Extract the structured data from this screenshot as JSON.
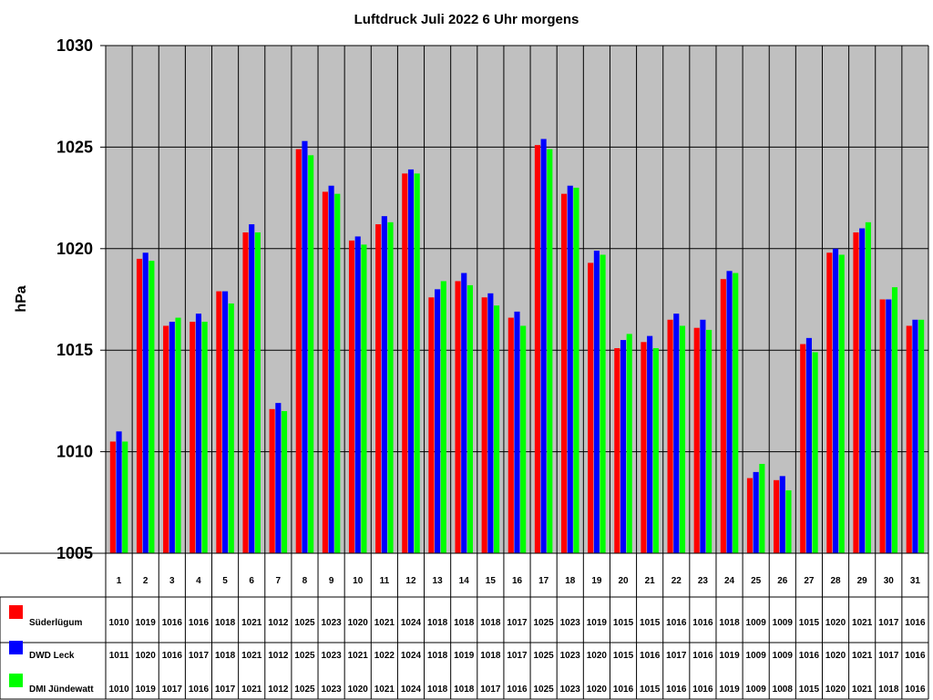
{
  "chart_data": {
    "type": "bar",
    "title": "Luftdruck Juli 2022 6 Uhr morgens",
    "ylabel": "hPa",
    "xlabel": "",
    "ylim": [
      1005,
      1030
    ],
    "yticks": [
      1005,
      1010,
      1015,
      1020,
      1025,
      1030
    ],
    "grid": true,
    "legend_placement": "table-bottom-left",
    "plot_background": "#c0c0c0",
    "categories": [
      "1",
      "2",
      "3",
      "4",
      "5",
      "6",
      "7",
      "8",
      "9",
      "10",
      "11",
      "12",
      "13",
      "14",
      "15",
      "16",
      "17",
      "18",
      "19",
      "20",
      "21",
      "22",
      "23",
      "24",
      "25",
      "26",
      "27",
      "28",
      "29",
      "30",
      "31"
    ],
    "series": [
      {
        "name": "Süderlügum",
        "color": "#ff0000",
        "values": [
          1010.5,
          1019.5,
          1016.2,
          1016.4,
          1017.9,
          1020.8,
          1012.1,
          1024.9,
          1022.8,
          1020.4,
          1021.2,
          1023.7,
          1017.6,
          1018.4,
          1017.6,
          1016.6,
          1025.1,
          1022.7,
          1019.3,
          1015.1,
          1015.4,
          1016.5,
          1016.1,
          1018.5,
          1008.7,
          1008.6,
          1015.3,
          1019.8,
          1020.8,
          1017.5,
          1016.2
        ],
        "table_values": [
          "1010",
          "1019",
          "1016",
          "1016",
          "1018",
          "1021",
          "1012",
          "1025",
          "1023",
          "1020",
          "1021",
          "1024",
          "1018",
          "1018",
          "1018",
          "1017",
          "1025",
          "1023",
          "1019",
          "1015",
          "1015",
          "1016",
          "1016",
          "1018",
          "1009",
          "1009",
          "1015",
          "1020",
          "1021",
          "1017",
          "1016"
        ]
      },
      {
        "name": "DWD Leck",
        "color": "#0000ff",
        "values": [
          1011.0,
          1019.8,
          1016.4,
          1016.8,
          1017.9,
          1021.2,
          1012.4,
          1025.3,
          1023.1,
          1020.6,
          1021.6,
          1023.9,
          1018.0,
          1018.8,
          1017.8,
          1016.9,
          1025.4,
          1023.1,
          1019.9,
          1015.5,
          1015.7,
          1016.8,
          1016.5,
          1018.9,
          1009.0,
          1008.8,
          1015.6,
          1020.0,
          1021.0,
          1017.5,
          1016.5
        ],
        "table_values": [
          "1011",
          "1020",
          "1016",
          "1017",
          "1018",
          "1021",
          "1012",
          "1025",
          "1023",
          "1021",
          "1022",
          "1024",
          "1018",
          "1019",
          "1018",
          "1017",
          "1025",
          "1023",
          "1020",
          "1015",
          "1016",
          "1017",
          "1016",
          "1019",
          "1009",
          "1009",
          "1016",
          "1020",
          "1021",
          "1017",
          "1016"
        ]
      },
      {
        "name": "DMI Jündewatt",
        "color": "#00ff00",
        "values": [
          1010.5,
          1019.4,
          1016.6,
          1016.4,
          1017.3,
          1020.8,
          1012.0,
          1024.6,
          1022.7,
          1020.2,
          1021.3,
          1023.7,
          1018.4,
          1018.2,
          1017.2,
          1016.2,
          1024.9,
          1023.0,
          1019.7,
          1015.8,
          1015.1,
          1016.2,
          1016.0,
          1018.8,
          1009.4,
          1008.1,
          1014.9,
          1019.7,
          1021.3,
          1018.1,
          1016.5
        ],
        "table_values": [
          "1010",
          "1019",
          "1017",
          "1016",
          "1017",
          "1021",
          "1012",
          "1025",
          "1023",
          "1020",
          "1021",
          "1024",
          "1018",
          "1018",
          "1017",
          "1016",
          "1025",
          "1023",
          "1020",
          "1016",
          "1015",
          "1016",
          "1016",
          "1019",
          "1009",
          "1008",
          "1015",
          "1020",
          "1021",
          "1018",
          "1016"
        ]
      }
    ]
  }
}
